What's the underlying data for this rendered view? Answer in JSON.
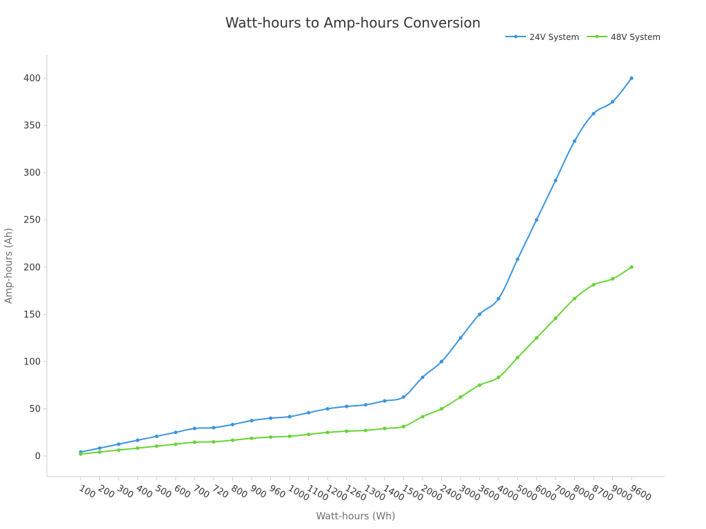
{
  "chart_data": {
    "type": "line",
    "title": "Watt-hours to Amp-hours Conversion",
    "xlabel": "Watt-hours (Wh)",
    "ylabel": "Amp-hours (Ah)",
    "categories": [
      "100",
      "200",
      "300",
      "400",
      "500",
      "600",
      "700",
      "720",
      "800",
      "900",
      "960",
      "1000",
      "1100",
      "1200",
      "1260",
      "1300",
      "1400",
      "1500",
      "2000",
      "2400",
      "3000",
      "3600",
      "4000",
      "5000",
      "6000",
      "7000",
      "8000",
      "8700",
      "9000",
      "9600"
    ],
    "series": [
      {
        "name": "24V System",
        "color": "#3a94e0",
        "values": [
          4.17,
          8.33,
          12.5,
          16.67,
          20.83,
          25,
          29.17,
          30,
          33.33,
          37.5,
          40,
          41.67,
          45.83,
          50,
          52.5,
          54.17,
          58.33,
          62.5,
          83.33,
          100,
          125,
          150,
          166.67,
          208.33,
          250,
          291.67,
          333.33,
          362.5,
          375,
          400
        ]
      },
      {
        "name": "48V System",
        "color": "#67d336",
        "values": [
          2.08,
          4.17,
          6.25,
          8.33,
          10.42,
          12.5,
          14.58,
          15,
          16.67,
          18.75,
          20,
          20.83,
          22.92,
          25,
          26.25,
          27.08,
          29.17,
          31.25,
          41.67,
          50,
          62.5,
          75,
          83.33,
          104.17,
          125,
          145.83,
          166.67,
          181.25,
          187.5,
          200
        ]
      }
    ],
    "ylim": [
      -22.5,
      425
    ],
    "yticks": [
      0,
      50,
      100,
      150,
      200,
      250,
      300,
      350,
      400
    ],
    "grid": false,
    "legend": "top-right"
  }
}
